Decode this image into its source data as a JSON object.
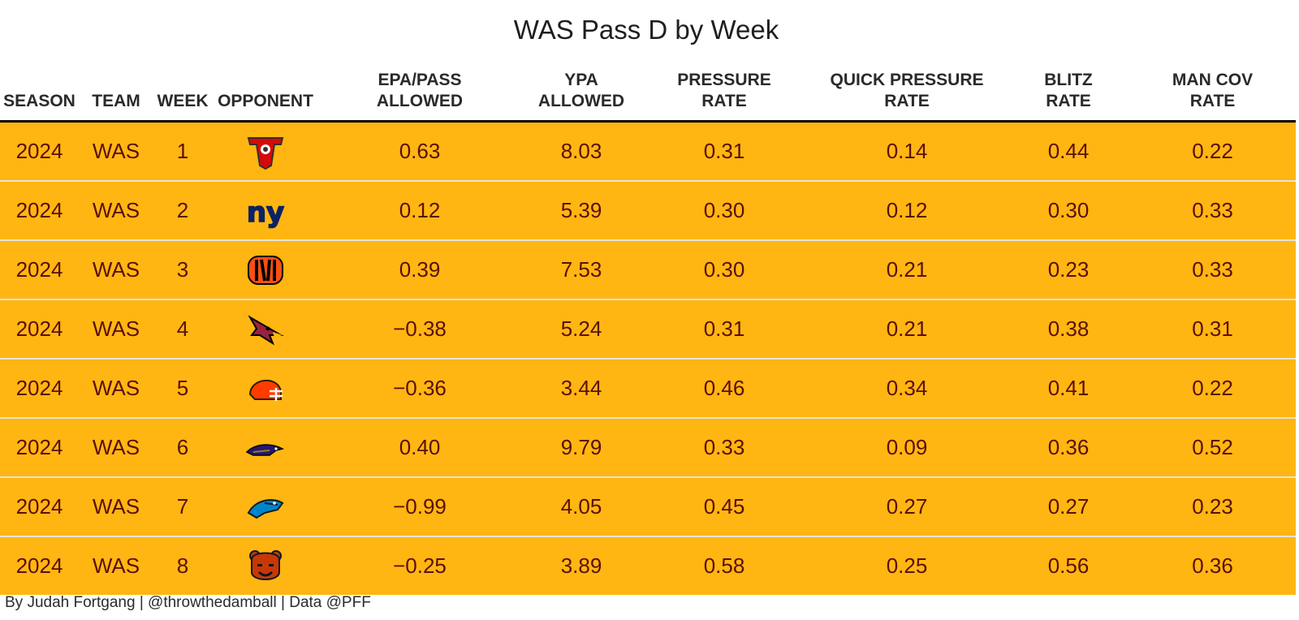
{
  "title": "WAS Pass D by Week",
  "columns": [
    {
      "l1": "",
      "l2": "SEASON"
    },
    {
      "l1": "",
      "l2": "TEAM"
    },
    {
      "l1": "",
      "l2": "WEEK"
    },
    {
      "l1": "",
      "l2": "OPPONENT"
    },
    {
      "l1": "EPA/PASS",
      "l2": "ALLOWED"
    },
    {
      "l1": "YPA",
      "l2": "ALLOWED"
    },
    {
      "l1": "PRESSURE",
      "l2": "RATE"
    },
    {
      "l1": "QUICK PRESSURE",
      "l2": "RATE"
    },
    {
      "l1": "BLITZ",
      "l2": "RATE"
    },
    {
      "l1": "MAN COV",
      "l2": "RATE"
    }
  ],
  "rows": [
    {
      "season": "2024",
      "team": "WAS",
      "week": "1",
      "opponent_icon": "buccaneers-logo-icon",
      "epa": "0.63",
      "ypa": "8.03",
      "pressure": "0.31",
      "quick": "0.14",
      "blitz": "0.44",
      "man": "0.22"
    },
    {
      "season": "2024",
      "team": "WAS",
      "week": "2",
      "opponent_icon": "giants-logo-icon",
      "epa": "0.12",
      "ypa": "5.39",
      "pressure": "0.30",
      "quick": "0.12",
      "blitz": "0.30",
      "man": "0.33"
    },
    {
      "season": "2024",
      "team": "WAS",
      "week": "3",
      "opponent_icon": "bengals-logo-icon",
      "epa": "0.39",
      "ypa": "7.53",
      "pressure": "0.30",
      "quick": "0.21",
      "blitz": "0.23",
      "man": "0.33"
    },
    {
      "season": "2024",
      "team": "WAS",
      "week": "4",
      "opponent_icon": "cardinals-logo-icon",
      "epa": "−0.38",
      "ypa": "5.24",
      "pressure": "0.31",
      "quick": "0.21",
      "blitz": "0.38",
      "man": "0.31"
    },
    {
      "season": "2024",
      "team": "WAS",
      "week": "5",
      "opponent_icon": "browns-logo-icon",
      "epa": "−0.36",
      "ypa": "3.44",
      "pressure": "0.46",
      "quick": "0.34",
      "blitz": "0.41",
      "man": "0.22"
    },
    {
      "season": "2024",
      "team": "WAS",
      "week": "6",
      "opponent_icon": "ravens-logo-icon",
      "epa": "0.40",
      "ypa": "9.79",
      "pressure": "0.33",
      "quick": "0.09",
      "blitz": "0.36",
      "man": "0.52"
    },
    {
      "season": "2024",
      "team": "WAS",
      "week": "7",
      "opponent_icon": "panthers-logo-icon",
      "epa": "−0.99",
      "ypa": "4.05",
      "pressure": "0.45",
      "quick": "0.27",
      "blitz": "0.27",
      "man": "0.23"
    },
    {
      "season": "2024",
      "team": "WAS",
      "week": "8",
      "opponent_icon": "bears-logo-icon",
      "epa": "−0.25",
      "ypa": "3.89",
      "pressure": "0.58",
      "quick": "0.25",
      "blitz": "0.56",
      "man": "0.36"
    }
  ],
  "footer": "By Judah Fortgang | @throwthedamball | Data @PFF",
  "colors": {
    "row_fill": "#ffb612",
    "text": "#5a1008",
    "header_rule": "#000000"
  },
  "chart_data": {
    "type": "table",
    "title": "WAS Pass D by Week",
    "columns": [
      "SEASON",
      "TEAM",
      "WEEK",
      "OPPONENT",
      "EPA/PASS ALLOWED",
      "YPA ALLOWED",
      "PRESSURE RATE",
      "QUICK PRESSURE RATE",
      "BLITZ RATE",
      "MAN COV RATE"
    ],
    "rows": [
      [
        2024,
        "WAS",
        1,
        "TB",
        0.63,
        8.03,
        0.31,
        0.14,
        0.44,
        0.22
      ],
      [
        2024,
        "WAS",
        2,
        "NYG",
        0.12,
        5.39,
        0.3,
        0.12,
        0.3,
        0.33
      ],
      [
        2024,
        "WAS",
        3,
        "CIN",
        0.39,
        7.53,
        0.3,
        0.21,
        0.23,
        0.33
      ],
      [
        2024,
        "WAS",
        4,
        "ARI",
        -0.38,
        5.24,
        0.31,
        0.21,
        0.38,
        0.31
      ],
      [
        2024,
        "WAS",
        5,
        "CLE",
        -0.36,
        3.44,
        0.46,
        0.34,
        0.41,
        0.22
      ],
      [
        2024,
        "WAS",
        6,
        "BAL",
        0.4,
        9.79,
        0.33,
        0.09,
        0.36,
        0.52
      ],
      [
        2024,
        "WAS",
        7,
        "CAR",
        -0.99,
        4.05,
        0.45,
        0.27,
        0.27,
        0.23
      ],
      [
        2024,
        "WAS",
        8,
        "CHI",
        -0.25,
        3.89,
        0.58,
        0.25,
        0.56,
        0.36
      ]
    ]
  }
}
